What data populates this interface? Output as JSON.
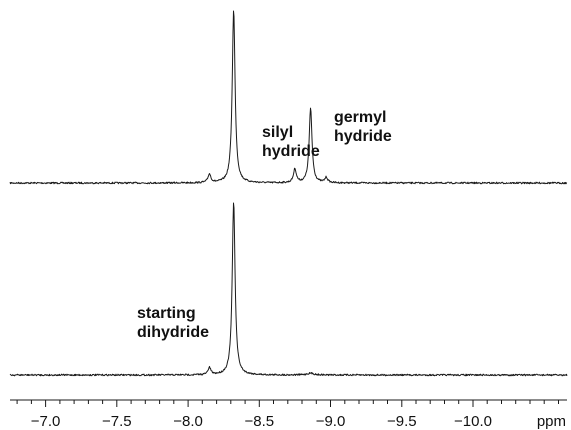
{
  "chart_data": {
    "type": "line",
    "x_unit": "ppm",
    "x_reversed": true,
    "xlim": [
      -6.75,
      -10.66
    ],
    "major_ticks": [
      -7.0,
      -7.5,
      -8.0,
      -8.5,
      -9.0,
      -9.5,
      -10.0
    ],
    "tick_labels": [
      "−7.0",
      "−7.5",
      "−8.0",
      "−8.5",
      "−9.0",
      "−9.5",
      "−10.0"
    ],
    "minor_tick_step": 0.1,
    "grid": false,
    "legend": "none",
    "series": [
      {
        "peaks": [
          {
            "shift": -8.15,
            "height": 0.05,
            "width": 0.012
          },
          {
            "shift": -8.32,
            "height": 1.0,
            "width": 0.012
          },
          {
            "shift": -8.75,
            "height": 0.08,
            "width": 0.012
          },
          {
            "shift": -8.86,
            "height": 0.43,
            "width": 0.012
          },
          {
            "shift": -8.97,
            "height": 0.03,
            "width": 0.012
          }
        ],
        "annotations": [
          {
            "lines": [
              "silyl",
              "hydride"
            ],
            "shift": -8.75
          },
          {
            "lines": [
              "germyl",
              "hydride"
            ],
            "shift": -8.86
          }
        ]
      },
      {
        "peaks": [
          {
            "shift": -8.15,
            "height": 0.04,
            "width": 0.012
          },
          {
            "shift": -8.32,
            "height": 1.0,
            "width": 0.012
          },
          {
            "shift": -8.86,
            "height": 0.01,
            "width": 0.03
          }
        ],
        "annotations": [
          {
            "lines": [
              "starting",
              "dihydride"
            ],
            "shift": -8.15
          }
        ]
      }
    ]
  }
}
